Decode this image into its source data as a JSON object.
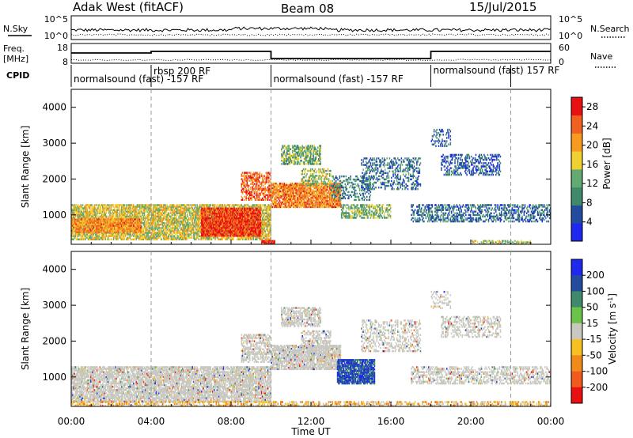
{
  "header": {
    "title": "Adak West (fitACF)",
    "beam": "Beam 08",
    "date": "15/Jul/2015"
  },
  "noise_panel": {
    "left_label": "N.Sky",
    "right_label": "N.Search",
    "left_ticks": [
      "10^5",
      "10^0"
    ],
    "right_ticks": [
      "10^5",
      "10^0"
    ]
  },
  "freq_panel": {
    "left_label_1": "Freq.",
    "left_label_2": "[MHz]",
    "right_label": "Nave",
    "left_ticks": [
      "18",
      "8"
    ],
    "right_ticks": [
      "60",
      "0"
    ],
    "cpid_label": "CPID"
  },
  "cpid_segments": [
    {
      "label": "normalsound (fast) -157 RF",
      "start_h": 0,
      "end_h": 10
    },
    {
      "label": "rbsp 200 RF",
      "start_h": 4,
      "end_h": 6
    },
    {
      "label": "normalsound (fast) -157 RF",
      "start_h": 10,
      "end_h": 18
    },
    {
      "label": "normalsound (fast) 157 RF",
      "start_h": 18,
      "end_h": 22
    }
  ],
  "chart_data": [
    {
      "type": "heatmap",
      "name": "power",
      "ylabel": "Slant Range [km]",
      "xlim": [
        0,
        24
      ],
      "ylim": [
        180,
        4500
      ],
      "yticks": [
        "1000",
        "2000",
        "3000",
        "4000"
      ],
      "colorbar": {
        "label": "Power [dB]",
        "ticks": [
          "4",
          "8",
          "12",
          "16",
          "20",
          "24",
          "28"
        ],
        "range": [
          0,
          30
        ],
        "colors": [
          "#1f28ee",
          "#234ca0",
          "#3f8a6a",
          "#62a972",
          "#f0d030",
          "#f89a20",
          "#f06020",
          "#e81010"
        ]
      },
      "regions": [
        {
          "x0": 0,
          "x1": 10,
          "r0": 300,
          "r1": 1300,
          "level": 0.55,
          "density": 0.75
        },
        {
          "x0": 0,
          "x1": 3.5,
          "r0": 500,
          "r1": 900,
          "level": 0.72,
          "density": 0.85
        },
        {
          "x0": 6.5,
          "x1": 9.5,
          "r0": 400,
          "r1": 1200,
          "level": 0.88,
          "density": 0.9
        },
        {
          "x0": 8.5,
          "x1": 10,
          "r0": 1400,
          "r1": 2200,
          "level": 0.8,
          "density": 0.55
        },
        {
          "x0": 10,
          "x1": 13.5,
          "r0": 1200,
          "r1": 1900,
          "level": 0.75,
          "density": 0.8
        },
        {
          "x0": 11.5,
          "x1": 13,
          "r0": 1800,
          "r1": 2300,
          "level": 0.5,
          "density": 0.45
        },
        {
          "x0": 10.5,
          "x1": 12.5,
          "r0": 2400,
          "r1": 2950,
          "level": 0.42,
          "density": 0.6
        },
        {
          "x0": 13.5,
          "x1": 16,
          "r0": 900,
          "r1": 1300,
          "level": 0.45,
          "density": 0.55
        },
        {
          "x0": 13,
          "x1": 15,
          "r0": 1400,
          "r1": 2100,
          "level": 0.3,
          "density": 0.35
        },
        {
          "x0": 14.5,
          "x1": 17.5,
          "r0": 1700,
          "r1": 2600,
          "level": 0.25,
          "density": 0.35
        },
        {
          "x0": 17,
          "x1": 24,
          "r0": 800,
          "r1": 1300,
          "level": 0.25,
          "density": 0.45
        },
        {
          "x0": 18.5,
          "x1": 21.5,
          "r0": 2100,
          "r1": 2700,
          "level": 0.2,
          "density": 0.4
        },
        {
          "x0": 18,
          "x1": 19,
          "r0": 2900,
          "r1": 3400,
          "level": 0.2,
          "density": 0.25
        },
        {
          "x0": 9.5,
          "x1": 10.2,
          "r0": 180,
          "r1": 300,
          "level": 0.95,
          "density": 0.95
        },
        {
          "x0": 20,
          "x1": 23,
          "r0": 180,
          "r1": 300,
          "level": 0.5,
          "density": 0.5
        }
      ]
    },
    {
      "type": "heatmap",
      "name": "velocity",
      "ylabel": "Slant Range [km]",
      "xlabel": "Time UT",
      "xlim": [
        0,
        24
      ],
      "xticks": [
        "00:00",
        "04:00",
        "08:00",
        "12:00",
        "16:00",
        "20:00",
        "00:00"
      ],
      "ylim": [
        180,
        4500
      ],
      "yticks": [
        "1000",
        "2000",
        "3000",
        "4000"
      ],
      "colorbar": {
        "label": "Velocity [m s^-1]",
        "ticks": [
          "200",
          "100",
          "50",
          "15",
          "-15",
          "-50",
          "-100",
          "-200"
        ],
        "range": [
          -250,
          250
        ],
        "colors": [
          "#1f28ee",
          "#234ca0",
          "#3f8a6a",
          "#6cc34a",
          "#c8c8c0",
          "#f5c020",
          "#f08a1a",
          "#f05a1a",
          "#e81010"
        ]
      },
      "regions": [
        {
          "x0": 0,
          "x1": 10,
          "r0": 300,
          "r1": 1300,
          "level": 0.5,
          "density": 0.75
        },
        {
          "x0": 8.5,
          "x1": 10,
          "r0": 1400,
          "r1": 2200,
          "level": 0.5,
          "density": 0.55
        },
        {
          "x0": 10,
          "x1": 13.5,
          "r0": 1200,
          "r1": 1900,
          "level": 0.5,
          "density": 0.8
        },
        {
          "x0": 11.5,
          "x1": 13,
          "r0": 1800,
          "r1": 2300,
          "level": 0.5,
          "density": 0.45
        },
        {
          "x0": 10.5,
          "x1": 12.5,
          "r0": 2400,
          "r1": 2950,
          "level": 0.5,
          "density": 0.6
        },
        {
          "x0": 13.3,
          "x1": 15.2,
          "r0": 800,
          "r1": 1500,
          "level": 0.85,
          "density": 0.85
        },
        {
          "x0": 14.5,
          "x1": 17.5,
          "r0": 1700,
          "r1": 2600,
          "level": 0.5,
          "density": 0.35
        },
        {
          "x0": 17,
          "x1": 24,
          "r0": 800,
          "r1": 1300,
          "level": 0.5,
          "density": 0.45
        },
        {
          "x0": 18.5,
          "x1": 21.5,
          "r0": 2100,
          "r1": 2700,
          "level": 0.5,
          "density": 0.4
        },
        {
          "x0": 18,
          "x1": 19,
          "r0": 2900,
          "r1": 3400,
          "level": 0.5,
          "density": 0.25
        },
        {
          "x0": 0,
          "x1": 24,
          "r0": 180,
          "r1": 330,
          "level": 0.38,
          "density": 0.45
        }
      ]
    }
  ]
}
